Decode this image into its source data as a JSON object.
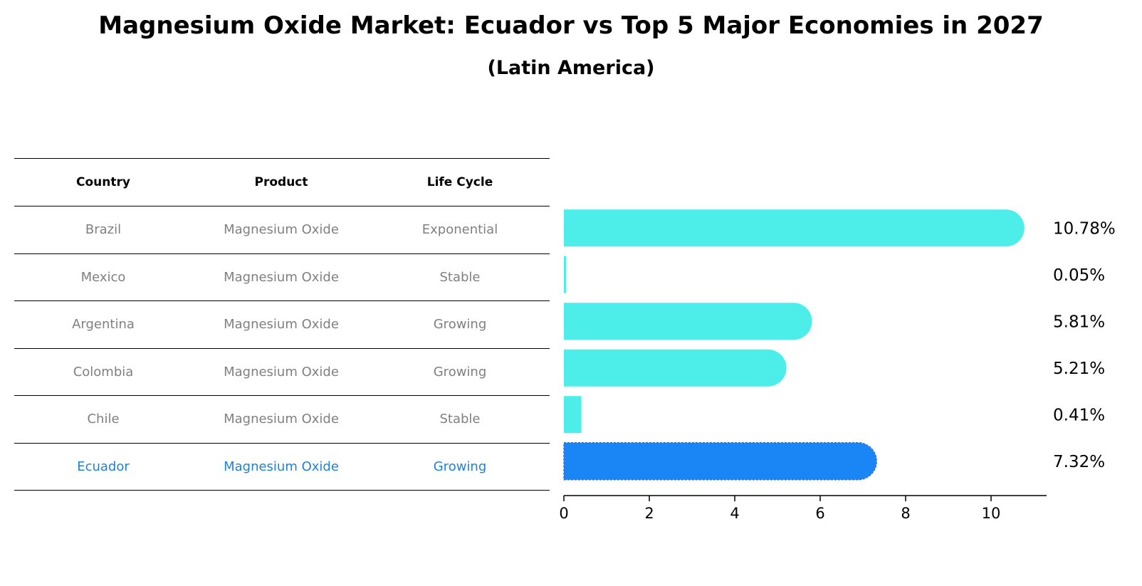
{
  "title": "Magnesium Oxide Market: Ecuador vs Top 5 Major Economies in 2027",
  "subtitle": "(Latin America)",
  "table": {
    "headers": [
      "Country",
      "Product",
      "Life Cycle"
    ],
    "rows": [
      {
        "country": "Brazil",
        "product": "Magnesium Oxide",
        "life_cycle": "Exponential"
      },
      {
        "country": "Mexico",
        "product": "Magnesium Oxide",
        "life_cycle": "Stable"
      },
      {
        "country": "Argentina",
        "product": "Magnesium Oxide",
        "life_cycle": "Growing"
      },
      {
        "country": "Colombia",
        "product": "Magnesium Oxide",
        "life_cycle": "Growing"
      },
      {
        "country": "Chile",
        "product": "Magnesium Oxide",
        "life_cycle": "Stable"
      },
      {
        "country": "Ecuador",
        "product": "Magnesium Oxide",
        "life_cycle": "Growing"
      }
    ]
  },
  "chart_data": {
    "type": "bar",
    "orientation": "horizontal",
    "categories": [
      "Brazil",
      "Mexico",
      "Argentina",
      "Colombia",
      "Chile",
      "Ecuador"
    ],
    "values": [
      10.78,
      0.05,
      5.81,
      5.21,
      0.41,
      7.32
    ],
    "value_labels": [
      "10.78%",
      "0.05%",
      "5.81%",
      "5.21%",
      "0.41%",
      "7.32%"
    ],
    "highlight_category": "Ecuador",
    "xlim": [
      0,
      11.3
    ],
    "xticks": [
      0,
      2,
      4,
      6,
      8,
      10
    ],
    "grid": false,
    "colors": {
      "bar": "#4deeea",
      "highlight": "#1a85f5"
    }
  }
}
